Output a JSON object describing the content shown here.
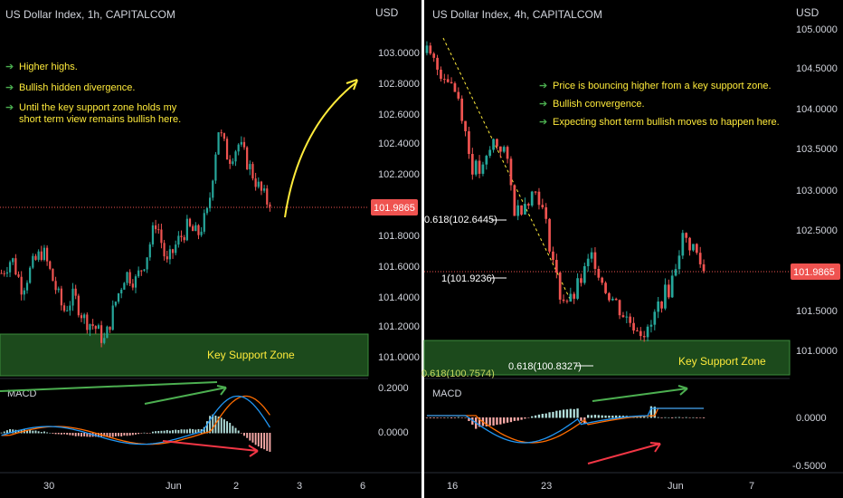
{
  "colors": {
    "bg": "#000000",
    "up": "#26a69a",
    "down": "#ef5350",
    "text": "#d1d4dc",
    "note": "#ffeb3b",
    "arrowNote": "#4caf50",
    "zone": "#1e4a1e",
    "zoneLine": "#4caf50",
    "priceTag": "#ef5350",
    "macdLine": "#2196f3",
    "signalLine": "#ff6d00",
    "divergenceUp": "#4caf50",
    "divergenceDown": "#f23645",
    "curveArrow": "#ffeb3b",
    "axisSep": "#ffffff"
  },
  "left": {
    "title": "US Dollar Index, 1h, CAPITALCOM",
    "currency": "USD",
    "notes": [
      "Higher highs.",
      "Bullish hidden divergence.",
      "Until the key support zone holds my short term view remains bullish here."
    ],
    "zone_label": "Key Support Zone",
    "macd_label": "MACD",
    "price_tag": "101.9865",
    "price_ticks": [
      "103.0000",
      "102.8000",
      "102.6000",
      "102.4000",
      "102.2000",
      "101.8000",
      "101.6000",
      "101.4000",
      "101.2000",
      "101.0000"
    ],
    "macd_ticks": [
      "0.2000",
      "0.0000"
    ],
    "time_ticks": [
      "30",
      "Jun",
      "2",
      "3",
      "6"
    ]
  },
  "right": {
    "title": "US Dollar Index, 4h, CAPITALCOM",
    "currency": "USD",
    "notes": [
      "Price is bouncing higher from a key support zone.",
      "Bullish convergence.",
      "Expecting short term bullish moves to happen here."
    ],
    "zone_label": "Key Support Zone",
    "macd_label": "MACD",
    "price_tag": "101.9865",
    "price_ticks": [
      "105.0000",
      "104.5000",
      "104.0000",
      "103.5000",
      "103.0000",
      "102.5000",
      "101.5000",
      "101.0000"
    ],
    "macd_ticks": [
      "0.0000",
      "-0.5000"
    ],
    "time_ticks": [
      "16",
      "23",
      "Jun",
      "7"
    ],
    "fib_labels": [
      "0.618(102.6445)",
      "1(101.9236)",
      "0.618(100.8327)",
      "0.618(100.7574)"
    ]
  },
  "chart_data": [
    {
      "type": "candlestick",
      "title": "US Dollar Index, 1h, CAPITALCOM",
      "ylabel": "USD",
      "ylim": [
        101.0,
        103.0
      ],
      "current_price": 101.9865,
      "support_zone": [
        100.95,
        101.15
      ],
      "close_path": [
        101.55,
        101.65,
        101.45,
        101.6,
        101.7,
        101.5,
        101.3,
        101.4,
        101.25,
        101.2,
        101.1,
        101.35,
        101.55,
        101.5,
        101.65,
        101.9,
        101.6,
        101.75,
        101.85,
        101.8,
        101.95,
        102.5,
        102.3,
        102.4,
        102.25,
        102.1,
        101.99
      ]
    },
    {
      "type": "candlestick",
      "title": "US Dollar Index, 4h, CAPITALCOM",
      "ylabel": "USD",
      "ylim": [
        101.0,
        105.0
      ],
      "current_price": 101.9865,
      "support_zone": [
        100.8,
        101.15
      ],
      "close_path": [
        104.7,
        104.5,
        104.4,
        104.1,
        103.3,
        103.2,
        103.6,
        103.5,
        102.7,
        102.9,
        103.0,
        102.4,
        101.7,
        101.6,
        101.9,
        102.2,
        101.8,
        101.6,
        101.4,
        101.3,
        101.2,
        101.6,
        101.8,
        102.4,
        102.3,
        101.99
      ]
    }
  ]
}
